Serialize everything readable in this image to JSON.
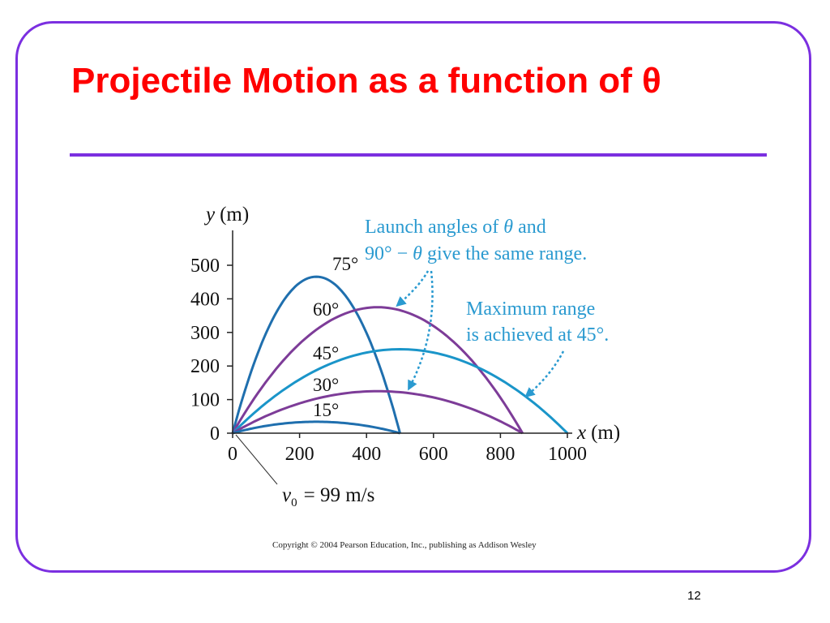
{
  "slide": {
    "title": "Projectile Motion as a function of θ",
    "copyright": "Copyright © 2004 Pearson Education, Inc., publishing as Addison Wesley",
    "page_number": "12",
    "colors": {
      "frame": "#7b2fe0",
      "title": "#ff0000",
      "annotation": "#2a9ad0"
    }
  },
  "chart_data": {
    "type": "line",
    "x_label_var": "x",
    "x_label_unit": "(m)",
    "y_label_var": "y",
    "y_label_unit": "(m)",
    "xlim": [
      0,
      1000
    ],
    "ylim": [
      0,
      500
    ],
    "x_ticks": [
      0,
      200,
      400,
      600,
      800,
      1000
    ],
    "y_ticks": [
      0,
      100,
      200,
      300,
      400,
      500
    ],
    "grid": false,
    "velocity_label": "v",
    "velocity_subscript": "0",
    "velocity_value": "= 99 m/s",
    "series": [
      {
        "name": "75°",
        "angle_deg": 75,
        "range_m": 500,
        "max_height_m": 466,
        "color": "#1f6fae"
      },
      {
        "name": "60°",
        "angle_deg": 60,
        "range_m": 866,
        "max_height_m": 375,
        "color": "#7d3c98"
      },
      {
        "name": "45°",
        "angle_deg": 45,
        "range_m": 1000,
        "max_height_m": 250,
        "color": "#1a95c9"
      },
      {
        "name": "30°",
        "angle_deg": 30,
        "range_m": 866,
        "max_height_m": 125,
        "color": "#7d3c98"
      },
      {
        "name": "15°",
        "angle_deg": 15,
        "range_m": 500,
        "max_height_m": 34,
        "color": "#1f6fae"
      }
    ],
    "annotations": [
      {
        "line1_pre": "Launch angles of ",
        "line1_var": "θ",
        "line1_post": " and",
        "line2_pre": "90° − ",
        "line2_var": "θ",
        "line2_post": " give the same range."
      },
      {
        "line1": "Maximum range",
        "line2": "is achieved at 45°."
      }
    ]
  }
}
